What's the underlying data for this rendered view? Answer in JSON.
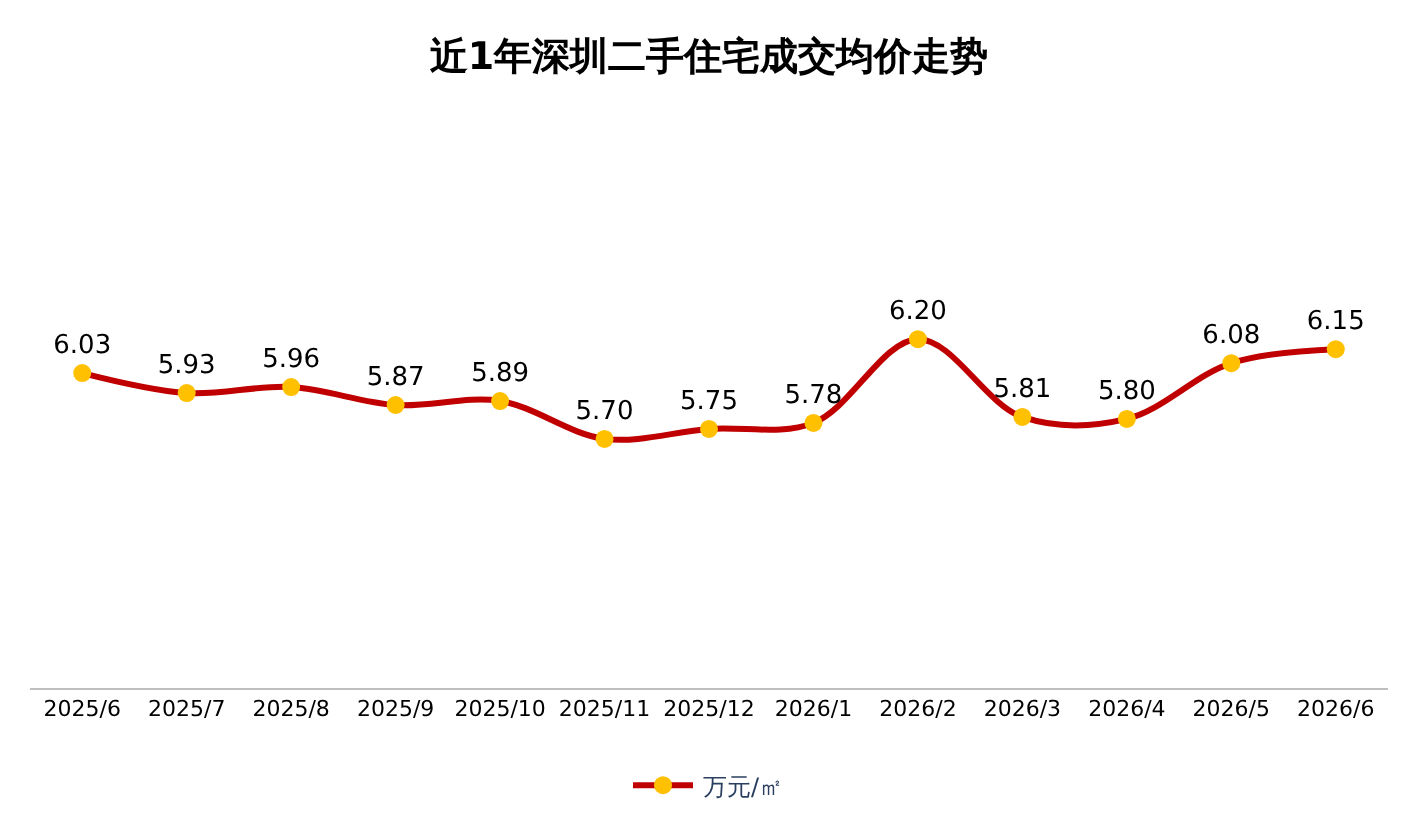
{
  "chart_data": {
    "type": "line",
    "title": "近1年深圳二手住宅成交均价走势",
    "categories": [
      "2025/6",
      "2025/7",
      "2025/8",
      "2025/9",
      "2025/10",
      "2025/11",
      "2025/12",
      "2026/1",
      "2026/2",
      "2026/3",
      "2026/4",
      "2026/5",
      "2026/6"
    ],
    "series": [
      {
        "name": "万元/㎡",
        "color": "#c00000",
        "colors": [
          "#ffc000",
          "#ffc000",
          "#ffc000",
          "#ffc000",
          "#ffc000",
          "#ffc000",
          "#ffc000",
          "#ffc000",
          "#ffc000",
          "#ffc000",
          "#ffc000",
          "#ffc000",
          "#ffc000"
        ],
        "values": [
          6.03,
          5.93,
          5.96,
          5.87,
          5.89,
          5.7,
          5.75,
          5.78,
          6.2,
          5.81,
          5.8,
          6.08,
          6.15
        ],
        "value_labels": [
          "6.03",
          "5.93",
          "5.96",
          "5.87",
          "5.89",
          "5.70",
          "5.75",
          "5.78",
          "6.20",
          "5.81",
          "5.80",
          "6.08",
          "6.15"
        ]
      }
    ],
    "marker": "circle",
    "line_style": "solid",
    "legend": "bottom"
  }
}
